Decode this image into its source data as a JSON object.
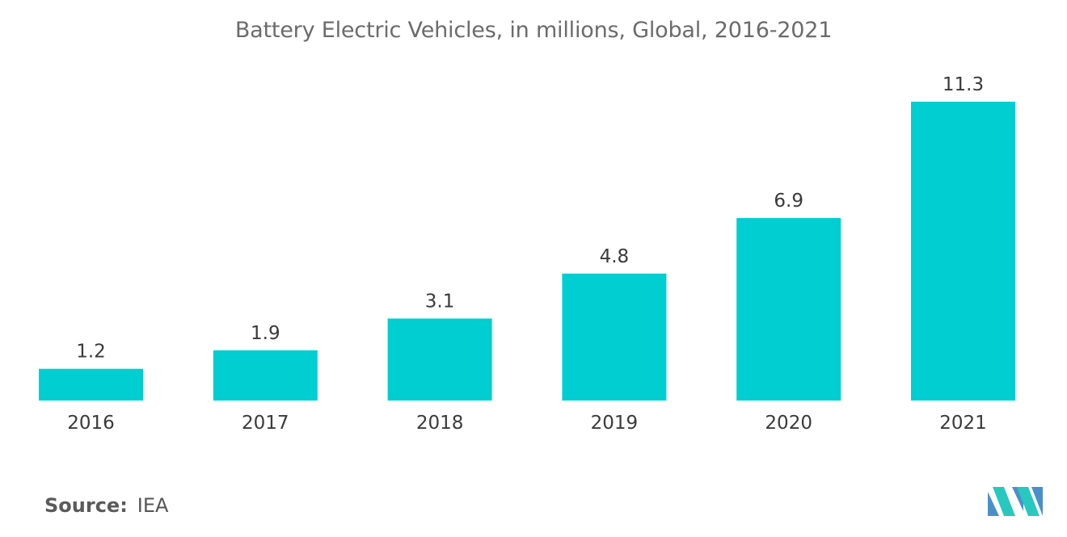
{
  "colors": {
    "bar": "#00ced1",
    "logo_primary": "#4a90c8",
    "logo_accent": "#28c8c0"
  },
  "chart_data": {
    "type": "bar",
    "title": "Battery Electric Vehicles, in millions, Global, 2016-2021",
    "xlabel": "",
    "ylabel": "",
    "categories": [
      "2016",
      "2017",
      "2018",
      "2019",
      "2020",
      "2021"
    ],
    "values": [
      1.2,
      1.9,
      3.1,
      4.8,
      6.9,
      11.3
    ],
    "value_labels": [
      "1.2",
      "1.9",
      "3.1",
      "4.8",
      "6.9",
      "11.3"
    ],
    "ylim": [
      0,
      12
    ],
    "grid": false,
    "legend": "none"
  },
  "source": {
    "label": "Source:",
    "value": "IEA"
  },
  "logo": {
    "icon": "mordor-intelligence-logo-icon"
  }
}
